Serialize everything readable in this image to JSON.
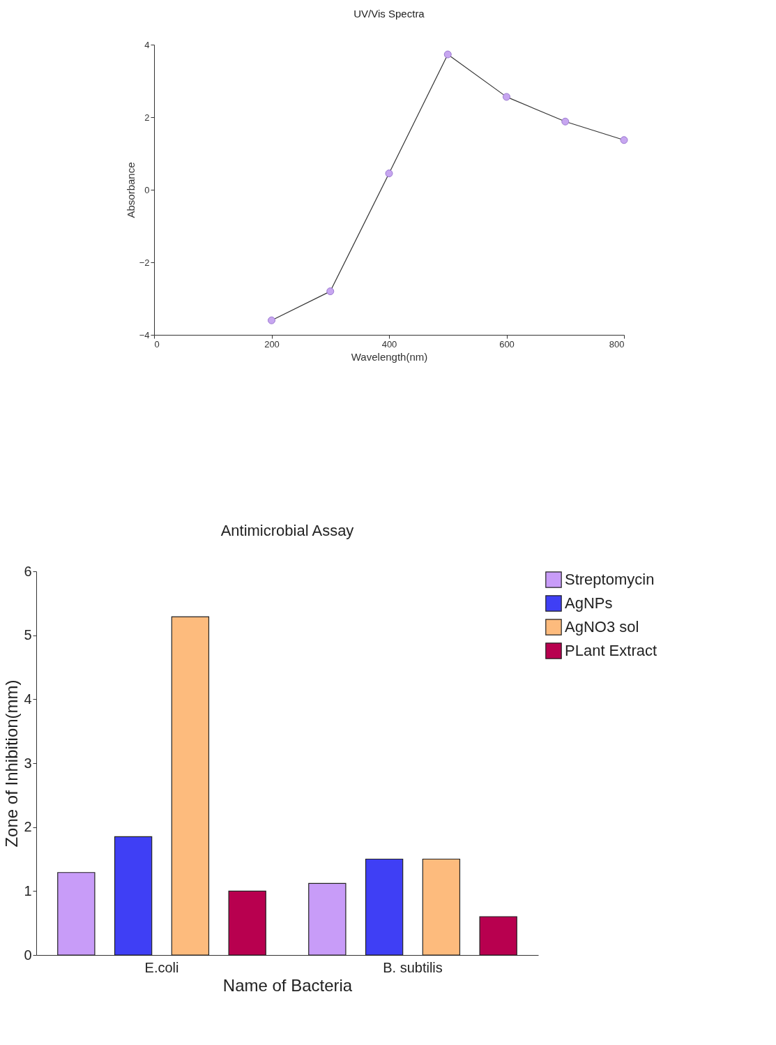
{
  "chart_data": [
    {
      "type": "line",
      "title": "UV/Vis Spectra",
      "xlabel": "Wavelength(nm)",
      "ylabel": "Absorbance",
      "x": [
        200,
        300,
        400,
        500,
        600,
        700,
        800
      ],
      "series": [
        {
          "color": "#333333",
          "values": [
            -3.6,
            -2.8,
            0.45,
            3.73,
            2.56,
            1.88,
            1.37
          ]
        }
      ],
      "marker": "circle",
      "xlim": [
        0,
        800
      ],
      "xticks": [
        0,
        200,
        400,
        600,
        800
      ],
      "ylim": [
        -4,
        4
      ],
      "yticks": [
        -4,
        -2,
        0,
        2,
        4
      ],
      "grid": false
    },
    {
      "type": "bar",
      "title": "Antimicrobial Assay",
      "xlabel": "Name of Bacteria",
      "ylabel": "Zone of Inhibition(mm)",
      "categories": [
        "E.coli",
        "B. subtilis"
      ],
      "series": [
        {
          "name": "Streptomycin",
          "color": "#c89cf8",
          "values": [
            1.29,
            1.12
          ]
        },
        {
          "name": "AgNPs",
          "color": "#3f3ff5",
          "values": [
            1.85,
            1.5
          ]
        },
        {
          "name": "AgNO3 sol",
          "color": "#fdbb7d",
          "values": [
            5.29,
            1.5
          ]
        },
        {
          "name": "PLant Extract",
          "color": "#b8004f",
          "values": [
            1.0,
            0.6
          ]
        }
      ],
      "ylim": [
        0,
        6
      ],
      "yticks": [
        0,
        1,
        2,
        3,
        4,
        5,
        6
      ],
      "grid": false,
      "legend": "top right"
    }
  ]
}
